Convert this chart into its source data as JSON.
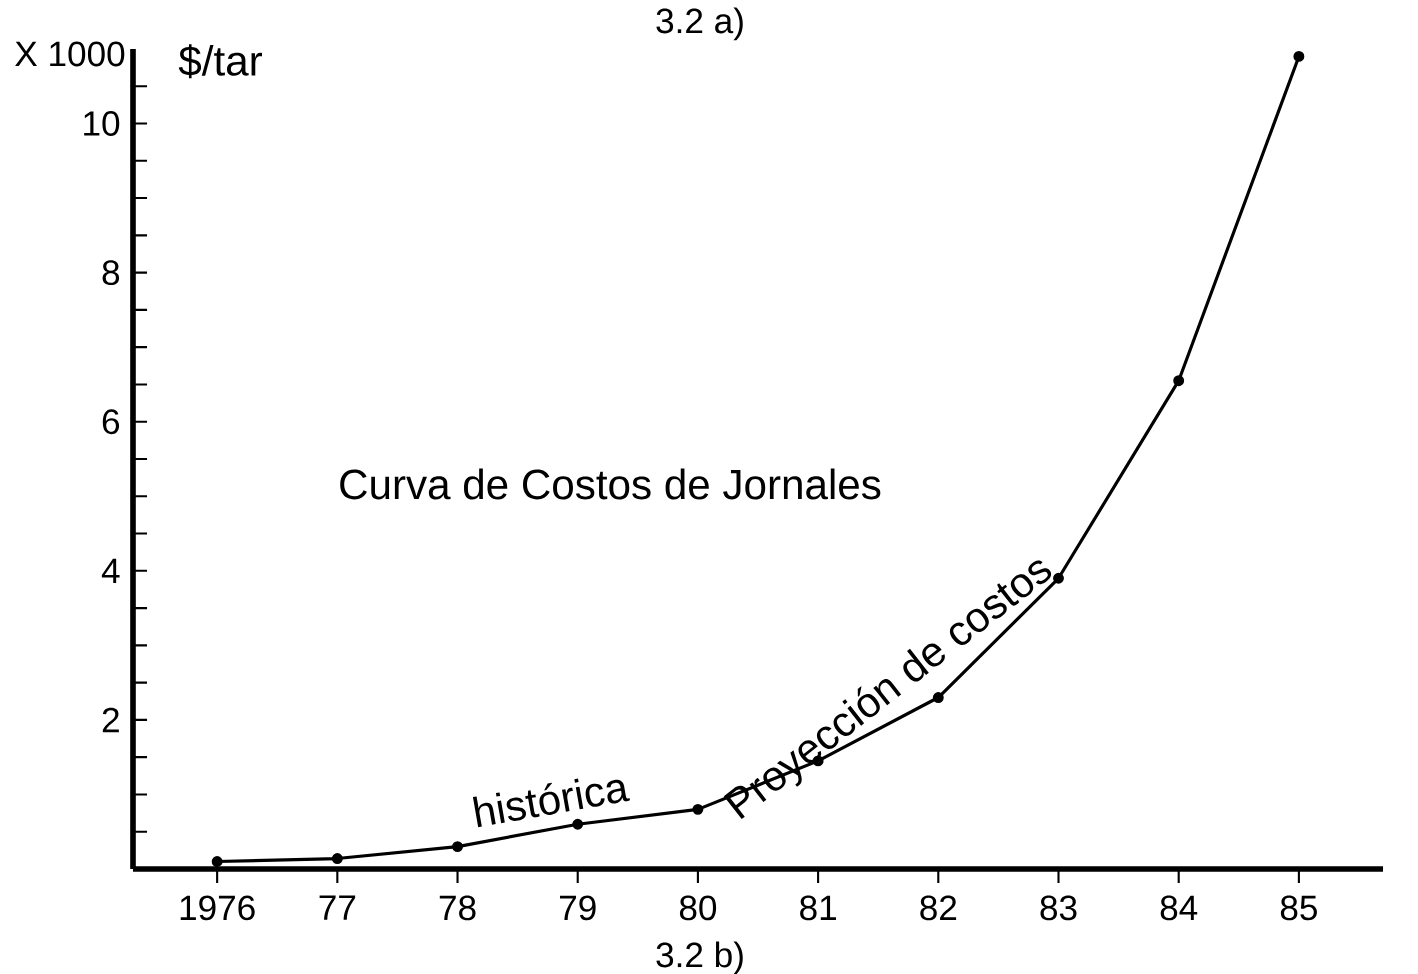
{
  "chart_data": {
    "type": "line",
    "title": "Curva de Costos de Jornales",
    "ylabel": "$/tar",
    "annotations": [
      "3.2 a)",
      "3.2 b)",
      "X 1000",
      "histórica",
      "Proyección de costos"
    ],
    "x": [
      1976,
      1977,
      1978,
      1979,
      1980,
      1981,
      1982,
      1983,
      1984,
      1985
    ],
    "values": [
      0.1,
      0.14,
      0.3,
      0.6,
      0.8,
      1.45,
      2.3,
      3.9,
      6.55,
      10.9
    ],
    "color": "#000000",
    "marker": "circle",
    "line_style": "solid",
    "xlim": [
      1975.3,
      1985.7
    ],
    "ylim": [
      0,
      11
    ],
    "xticks": [
      {
        "value": 1976,
        "label": "1976"
      },
      {
        "value": 1977,
        "label": "77"
      },
      {
        "value": 1978,
        "label": "78"
      },
      {
        "value": 1979,
        "label": "79"
      },
      {
        "value": 1980,
        "label": "80"
      },
      {
        "value": 1981,
        "label": "81"
      },
      {
        "value": 1982,
        "label": "82"
      },
      {
        "value": 1983,
        "label": "83"
      },
      {
        "value": 1984,
        "label": "84"
      },
      {
        "value": 1985,
        "label": "85"
      }
    ],
    "yticks": [
      {
        "value": 0.5,
        "label": null
      },
      {
        "value": 1,
        "label": null
      },
      {
        "value": 1.5,
        "label": null
      },
      2,
      {
        "value": 2.5,
        "label": null
      },
      {
        "value": 3,
        "label": null
      },
      {
        "value": 3.5,
        "label": null
      },
      4,
      {
        "value": 4.5,
        "label": null
      },
      {
        "value": 5,
        "label": null
      },
      {
        "value": 5.5,
        "label": null
      },
      6,
      {
        "value": 6.5,
        "label": null
      },
      {
        "value": 7,
        "label": null
      },
      {
        "value": 7.5,
        "label": null
      },
      8,
      {
        "value": 8.5,
        "label": null
      },
      {
        "value": 9,
        "label": null
      },
      {
        "value": 9.5,
        "label": null
      },
      10,
      {
        "value": 10.5,
        "label": null
      }
    ]
  }
}
